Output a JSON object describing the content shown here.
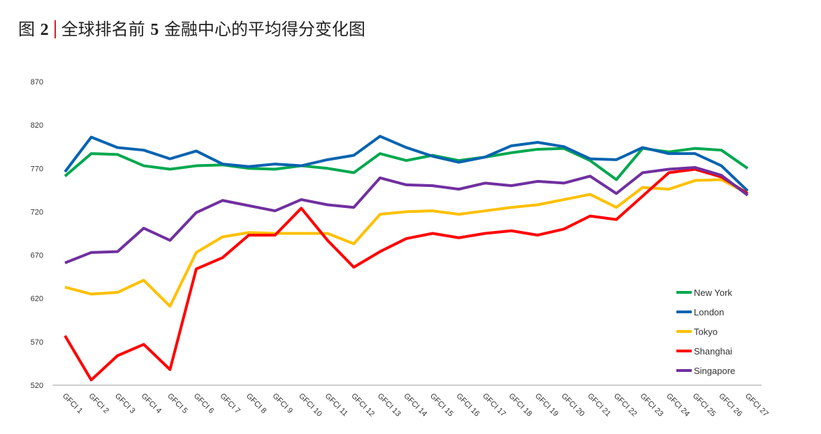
{
  "title": {
    "prefix": "图",
    "number": "2",
    "text_a": "全球排名前",
    "count": "5",
    "text_b": "金融中心的平均得分变化图"
  },
  "chart_data": {
    "type": "line",
    "title": "全球排名前 5 金融中心的平均得分变化图",
    "xlabel": "",
    "ylabel": "",
    "ylim": [
      520,
      870
    ],
    "yticks": [
      520,
      570,
      620,
      670,
      720,
      770,
      820,
      870
    ],
    "categories": [
      "GFCI 1",
      "GFCI 2",
      "GFCI 3",
      "GFCI 4",
      "GFCI 5",
      "GFCI 6",
      "GFCI 7",
      "GFCI 8",
      "GFCI 9",
      "GFCI 10",
      "GFCI 11",
      "GFCI 12",
      "GFCI 13",
      "GFCI 14",
      "GFCI 15",
      "GFCI 16",
      "GFCI 17",
      "GFCI 18",
      "GFCI 19",
      "GFCI 20",
      "GFCI 21",
      "GFCI 22",
      "GFCI 23",
      "GFCI 24",
      "GFCI 25",
      "GFCI 26",
      "GFCI 27"
    ],
    "legend_position": "bottom-right",
    "grid": false,
    "series": [
      {
        "name": "New York",
        "color": "#00a84f",
        "values": [
          761,
          787,
          786,
          773,
          769,
          773,
          774,
          770,
          769,
          773,
          770,
          765,
          787,
          779,
          785,
          779,
          783,
          788,
          792,
          793,
          779,
          757,
          793,
          789,
          793,
          791,
          770
        ]
      },
      {
        "name": "London",
        "color": "#0563b0",
        "values": [
          766,
          806,
          794,
          791,
          781,
          790,
          775,
          772,
          775,
          773,
          780,
          785,
          807,
          794,
          784,
          777,
          783,
          796,
          800,
          795,
          781,
          780,
          794,
          787,
          787,
          773,
          744
        ]
      },
      {
        "name": "Tokyo",
        "color": "#ffc000",
        "values": [
          633,
          625,
          627,
          641,
          611,
          673,
          691,
          696,
          695,
          695,
          695,
          683,
          717,
          720,
          721,
          717,
          721,
          725,
          728,
          734,
          740,
          725,
          748,
          746,
          756,
          757,
          741
        ]
      },
      {
        "name": "Shanghai",
        "color": "#ff0000",
        "values": [
          577,
          526,
          554,
          567,
          538,
          654,
          667,
          693,
          693,
          724,
          687,
          656,
          674,
          689,
          695,
          690,
          695,
          698,
          693,
          700,
          715,
          711,
          738,
          765,
          769,
          760,
          741
        ]
      },
      {
        "name": "Singapore",
        "color": "#7030a0",
        "values": [
          661,
          673,
          674,
          701,
          687,
          719,
          733,
          727,
          721,
          734,
          728,
          725,
          759,
          751,
          750,
          746,
          753,
          750,
          755,
          753,
          761,
          741,
          765,
          769,
          771,
          762,
          739
        ]
      }
    ]
  }
}
